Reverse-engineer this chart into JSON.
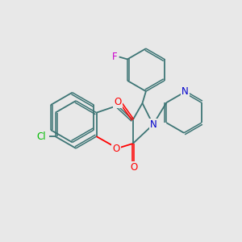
{
  "background_color": "#e8e8e8",
  "bond_color": "#3d7575",
  "atom_colors": {
    "O": "#ff0000",
    "N": "#0000cc",
    "Cl": "#00bb00",
    "F": "#cc00cc"
  },
  "figsize": [
    3.0,
    3.0
  ],
  "dpi": 100
}
